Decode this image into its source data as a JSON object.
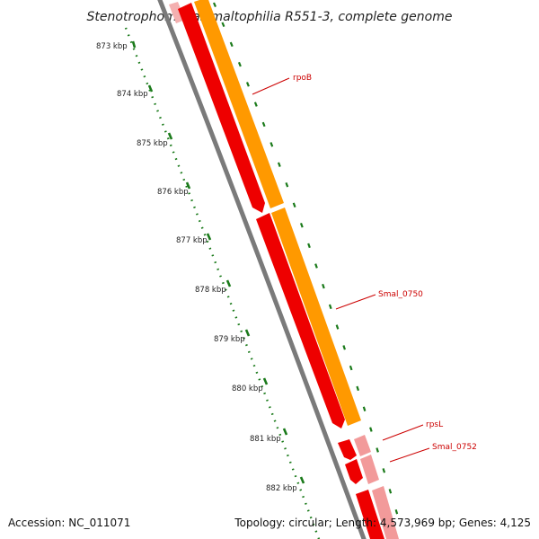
{
  "title": "Stenotrophomonas maltophilia R551-3, complete genome",
  "accession": "Accession: NC_011071",
  "stats": "Topology: circular; Length: 4,573,969 bp; Genes: 4,125",
  "tick_labels": [
    "873 kbp",
    "874 kbp",
    "875 kbp",
    "876 kbp",
    "877 kbp",
    "878 kbp",
    "879 kbp",
    "880 kbp",
    "881 kbp",
    "882 kbp"
  ],
  "gene_labels": {
    "rpoB": "rpoB",
    "smal0750": "Smal_0750",
    "rpsL": "rpsL",
    "smal0752": "Smal_0752"
  },
  "colors": {
    "backbone": "#777777",
    "cds_dark": "#ee0000",
    "cds_light": "#f29a9a",
    "gene_orange": "#ff9900",
    "tick_green": "#1a7a1a",
    "label_red": "#cc0000"
  }
}
